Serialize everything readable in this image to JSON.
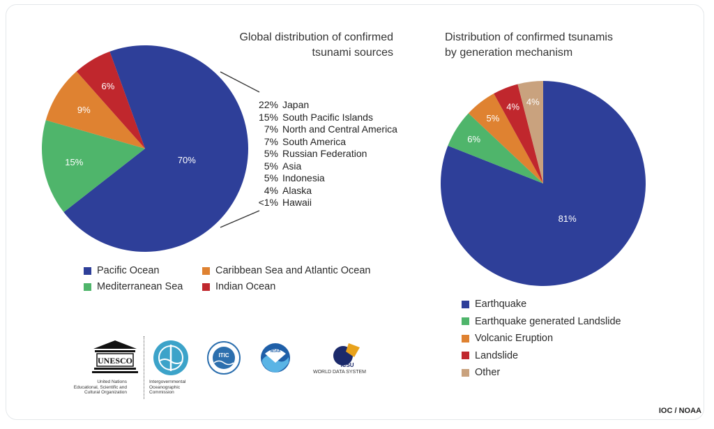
{
  "chart_data": [
    {
      "type": "pie",
      "title": "Global distribution of confirmed tsunami sources",
      "title_lines": [
        "Global distribution of confirmed",
        "tsunami sources"
      ],
      "slices": [
        {
          "name": "Pacific Ocean",
          "value": 70,
          "label": "70%",
          "color": "#2e3f99"
        },
        {
          "name": "Mediterranean Sea",
          "value": 15,
          "label": "15%",
          "color": "#4fb56b"
        },
        {
          "name": "Caribbean Sea and Atlantic Ocean",
          "value": 9,
          "label": "9%",
          "color": "#df8231"
        },
        {
          "name": "Indian Ocean",
          "value": 6,
          "label": "6%",
          "color": "#c0272d"
        }
      ],
      "breakdown_of": "Pacific Ocean",
      "breakdown": [
        {
          "value": "22%",
          "label": "Japan"
        },
        {
          "value": "15%",
          "label": "South Pacific Islands"
        },
        {
          "value": "7%",
          "label": "North and Central America"
        },
        {
          "value": "7%",
          "label": "South America"
        },
        {
          "value": "5%",
          "label": "Russian Federation"
        },
        {
          "value": "5%",
          "label": "Asia"
        },
        {
          "value": "5%",
          "label": "Indonesia"
        },
        {
          "value": "4%",
          "label": "Alaska"
        },
        {
          "value": "<1%",
          "label": "Hawaii"
        }
      ],
      "legend_order": [
        "Pacific Ocean",
        "Caribbean Sea and Atlantic Ocean",
        "Mediterranean Sea",
        "Indian Ocean"
      ],
      "legend_placement": "bottom"
    },
    {
      "type": "pie",
      "title": "Distribution of confirmed tsunamis by generation mechanism",
      "title_lines": [
        "Distribution of confirmed tsunamis",
        "by generation mechanism"
      ],
      "slices": [
        {
          "name": "Earthquake",
          "value": 81,
          "label": "81%",
          "color": "#2e3f99"
        },
        {
          "name": "Earthquake generated Landslide",
          "value": 6,
          "label": "6%",
          "color": "#4fb56b"
        },
        {
          "name": "Volcanic Eruption",
          "value": 5,
          "label": "5%",
          "color": "#df8231"
        },
        {
          "name": "Landslide",
          "value": 4,
          "label": "4%",
          "color": "#c0272d"
        },
        {
          "name": "Other",
          "value": 4,
          "label": "4%",
          "color": "#c9a27e"
        }
      ],
      "legend_placement": "bottom"
    }
  ],
  "logos": {
    "unesco": {
      "wordmark": "UNESCO",
      "caption": [
        "United Nations",
        "Educational, Scientific and",
        "Cultural Organization"
      ]
    },
    "ioc": {
      "caption": [
        "Intergovernmental",
        "Oceanographic",
        "Commission"
      ]
    },
    "itic": {
      "wordmark": "ITIC"
    },
    "noaa": {
      "wordmark": "NOAA"
    },
    "wds": {
      "wordmark": "ICSU",
      "caption": "WORLD DATA SYSTEM"
    }
  },
  "credit": "IOC / NOAA"
}
